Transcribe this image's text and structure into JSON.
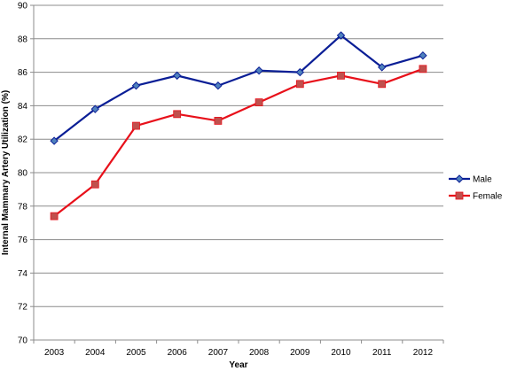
{
  "chart_data": {
    "type": "line",
    "title": "",
    "xlabel": "Year",
    "ylabel": "Internal Mammary Artery Utilization (%)",
    "categories": [
      "2003",
      "2004",
      "2005",
      "2006",
      "2007",
      "2008",
      "2009",
      "2010",
      "2011",
      "2012"
    ],
    "ylim": [
      70,
      90
    ],
    "yticks": [
      70,
      72,
      74,
      76,
      78,
      80,
      82,
      84,
      86,
      88,
      90
    ],
    "grid": true,
    "legend_position": "right",
    "series": [
      {
        "name": "Male",
        "values": [
          81.9,
          83.8,
          85.2,
          85.8,
          85.2,
          86.1,
          86.0,
          88.2,
          86.3,
          87.0
        ],
        "color": "#0A1E96",
        "marker": "diamond",
        "marker_color": "#4F81BD"
      },
      {
        "name": "Female",
        "values": [
          77.4,
          79.3,
          82.8,
          83.5,
          83.1,
          84.2,
          85.3,
          85.8,
          85.3,
          86.2
        ],
        "color": "#E8101A",
        "marker": "square",
        "marker_color": "#C0504D"
      }
    ]
  }
}
